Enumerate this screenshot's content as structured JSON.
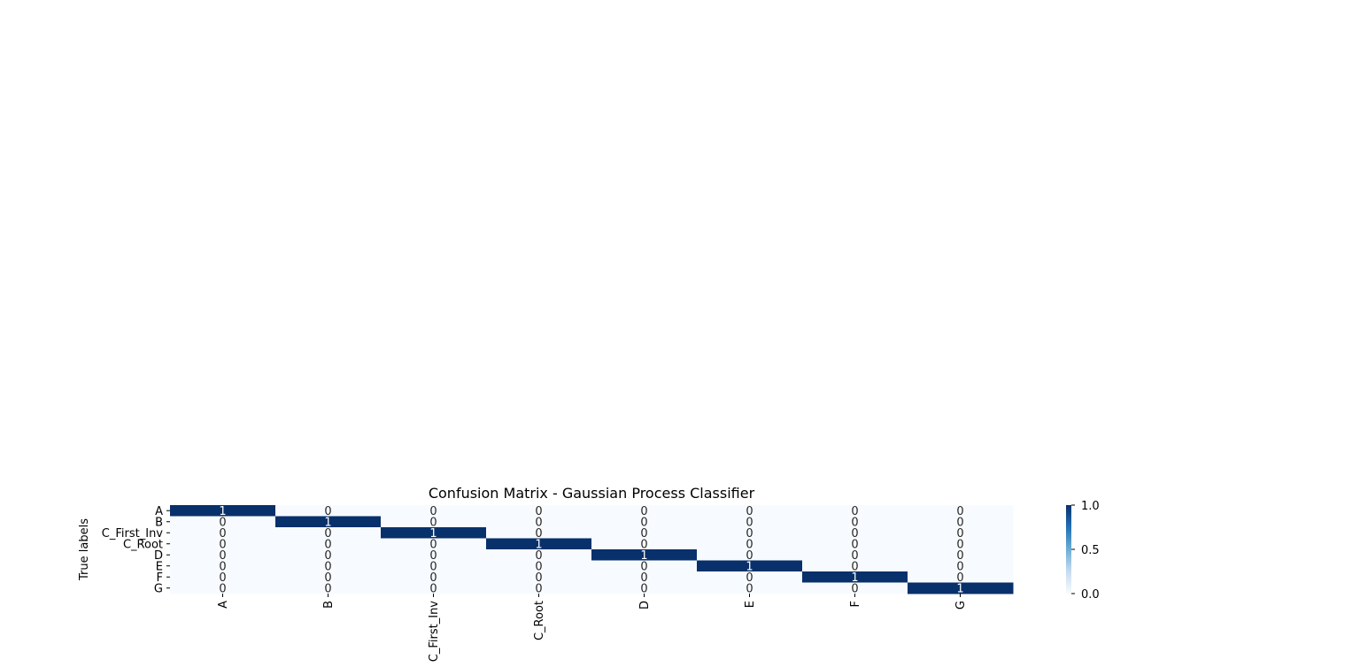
{
  "chart_data": {
    "type": "heatmap",
    "title": "Confusion Matrix - Gaussian Process Classifier",
    "xlabel": "",
    "ylabel": "True labels",
    "x_categories": [
      "A",
      "B",
      "C_First_Inv",
      "C_Root",
      "D",
      "E",
      "F",
      "G"
    ],
    "y_categories": [
      "A",
      "B",
      "C_First_Inv",
      "C_Root",
      "D",
      "E",
      "F",
      "G"
    ],
    "values": [
      [
        1,
        0,
        0,
        0,
        0,
        0,
        0,
        0
      ],
      [
        0,
        1,
        0,
        0,
        0,
        0,
        0,
        0
      ],
      [
        0,
        0,
        1,
        0,
        0,
        0,
        0,
        0
      ],
      [
        0,
        0,
        0,
        1,
        0,
        0,
        0,
        0
      ],
      [
        0,
        0,
        0,
        0,
        1,
        0,
        0,
        0
      ],
      [
        0,
        0,
        0,
        0,
        0,
        1,
        0,
        0
      ],
      [
        0,
        0,
        0,
        0,
        0,
        0,
        1,
        0
      ],
      [
        0,
        0,
        0,
        0,
        0,
        0,
        0,
        1
      ]
    ],
    "colormap": "Blues",
    "color_low": "#f7fbff",
    "color_high": "#08306b",
    "colorbar": {
      "range": [
        0.0,
        1.0
      ],
      "ticks": [
        0.0,
        0.5,
        1.0
      ],
      "tick_labels": [
        "0.0",
        "0.5",
        "1.0"
      ]
    }
  }
}
